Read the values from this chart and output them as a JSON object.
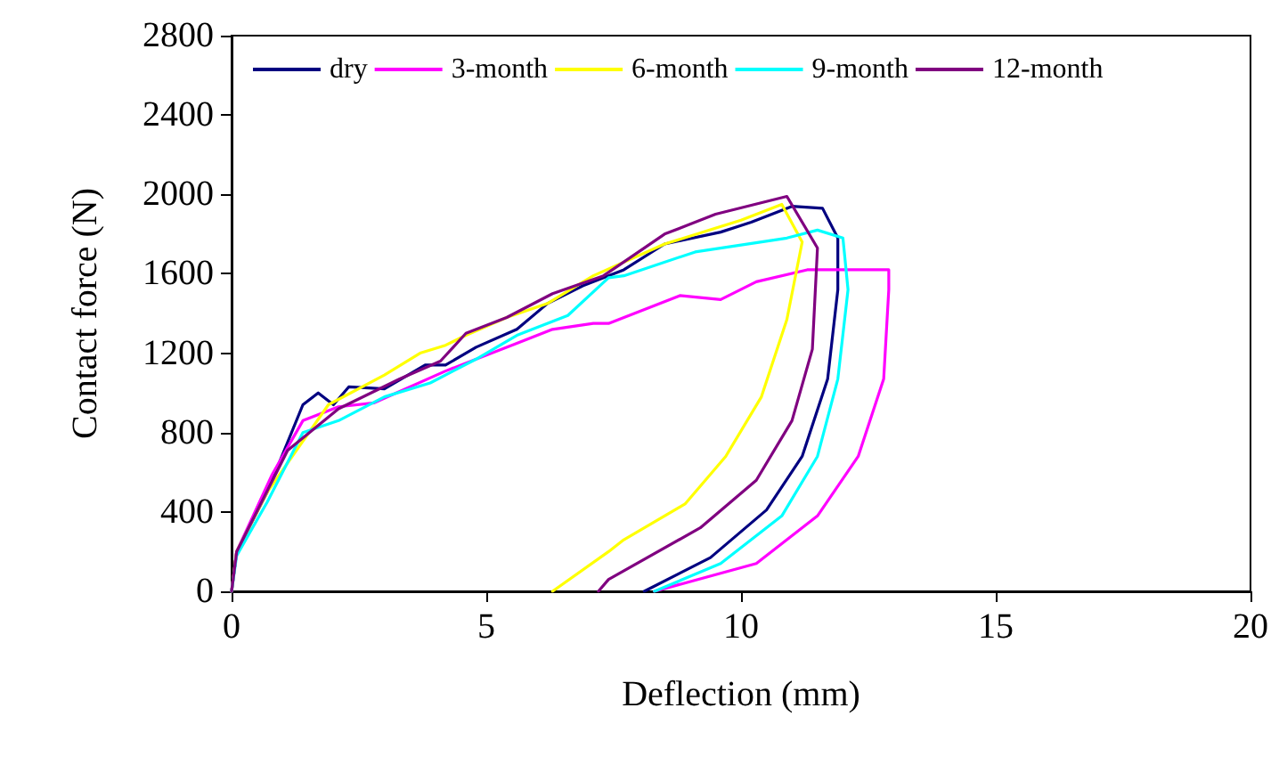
{
  "chart_data": {
    "type": "line",
    "xlabel": "Deflection (mm)",
    "ylabel": "Contact force (N)",
    "xlim": [
      0,
      20
    ],
    "xticks": [
      0,
      5,
      10,
      15,
      20
    ],
    "ylim": [
      0,
      2800
    ],
    "yticks": [
      0,
      400,
      800,
      1200,
      1600,
      2000,
      2400,
      2800
    ],
    "grid": false,
    "legend": "top",
    "marker": "none",
    "line_style": "solid",
    "series": [
      {
        "name": "dry",
        "color": "#000080",
        "x": [
          0,
          0.1,
          0.7,
          1.4,
          1.7,
          2.0,
          2.3,
          3.0,
          3.8,
          4.2,
          4.8,
          5.6,
          6.2,
          6.9,
          7.7,
          8.5,
          9.6,
          10.2,
          11.0,
          11.6,
          11.9,
          11.9,
          11.7,
          11.2,
          10.5,
          9.4,
          8.1
        ],
        "values": [
          0,
          200,
          500,
          940,
          1000,
          940,
          1030,
          1020,
          1140,
          1140,
          1230,
          1320,
          1450,
          1540,
          1620,
          1750,
          1810,
          1860,
          1940,
          1930,
          1780,
          1520,
          1070,
          680,
          410,
          170,
          0
        ]
      },
      {
        "name": "3-month",
        "color": "#ff00ff",
        "x": [
          0,
          0.1,
          0.8,
          1.4,
          2.1,
          2.8,
          4.2,
          5.6,
          6.3,
          7.1,
          7.4,
          8.8,
          9.6,
          10.3,
          11.3,
          12.9,
          12.9,
          12.8,
          12.3,
          11.5,
          10.3,
          8.3
        ],
        "values": [
          0,
          200,
          590,
          860,
          930,
          950,
          1110,
          1250,
          1320,
          1350,
          1350,
          1490,
          1470,
          1560,
          1620,
          1620,
          1520,
          1070,
          680,
          380,
          140,
          0
        ]
      },
      {
        "name": "6-month",
        "color": "#ffff00",
        "x": [
          0,
          0.1,
          0.7,
          1.9,
          3.0,
          3.7,
          4.2,
          4.6,
          5.4,
          6.2,
          7.1,
          8.5,
          10.0,
          10.8,
          11.2,
          10.9,
          10.4,
          9.7,
          8.9,
          7.7,
          7.4,
          6.3
        ],
        "values": [
          0,
          200,
          500,
          940,
          1090,
          1200,
          1240,
          1290,
          1380,
          1450,
          1590,
          1750,
          1870,
          1950,
          1760,
          1370,
          980,
          680,
          440,
          260,
          200,
          0
        ]
      },
      {
        "name": "9-month",
        "color": "#00ffff",
        "x": [
          0,
          0.1,
          0.7,
          1.4,
          2.1,
          3.0,
          3.9,
          4.8,
          5.6,
          6.6,
          7.4,
          7.7,
          9.1,
          10.9,
          11.5,
          12.0,
          12.1,
          11.9,
          11.5,
          10.8,
          9.6,
          8.3
        ],
        "values": [
          0,
          180,
          450,
          800,
          860,
          980,
          1050,
          1170,
          1290,
          1390,
          1580,
          1590,
          1710,
          1780,
          1820,
          1780,
          1520,
          1070,
          680,
          380,
          140,
          0
        ]
      },
      {
        "name": "12-month",
        "color": "#800080",
        "x": [
          0,
          0.1,
          1.1,
          2.1,
          3.3,
          4.1,
          4.6,
          5.4,
          6.3,
          7.3,
          7.7,
          8.5,
          9.5,
          10.9,
          11.5,
          11.4,
          11.0,
          10.3,
          9.2,
          7.4,
          7.2
        ],
        "values": [
          0,
          200,
          710,
          920,
          1070,
          1160,
          1300,
          1380,
          1500,
          1590,
          1660,
          1800,
          1900,
          1990,
          1730,
          1220,
          860,
          560,
          320,
          60,
          0
        ]
      }
    ]
  }
}
